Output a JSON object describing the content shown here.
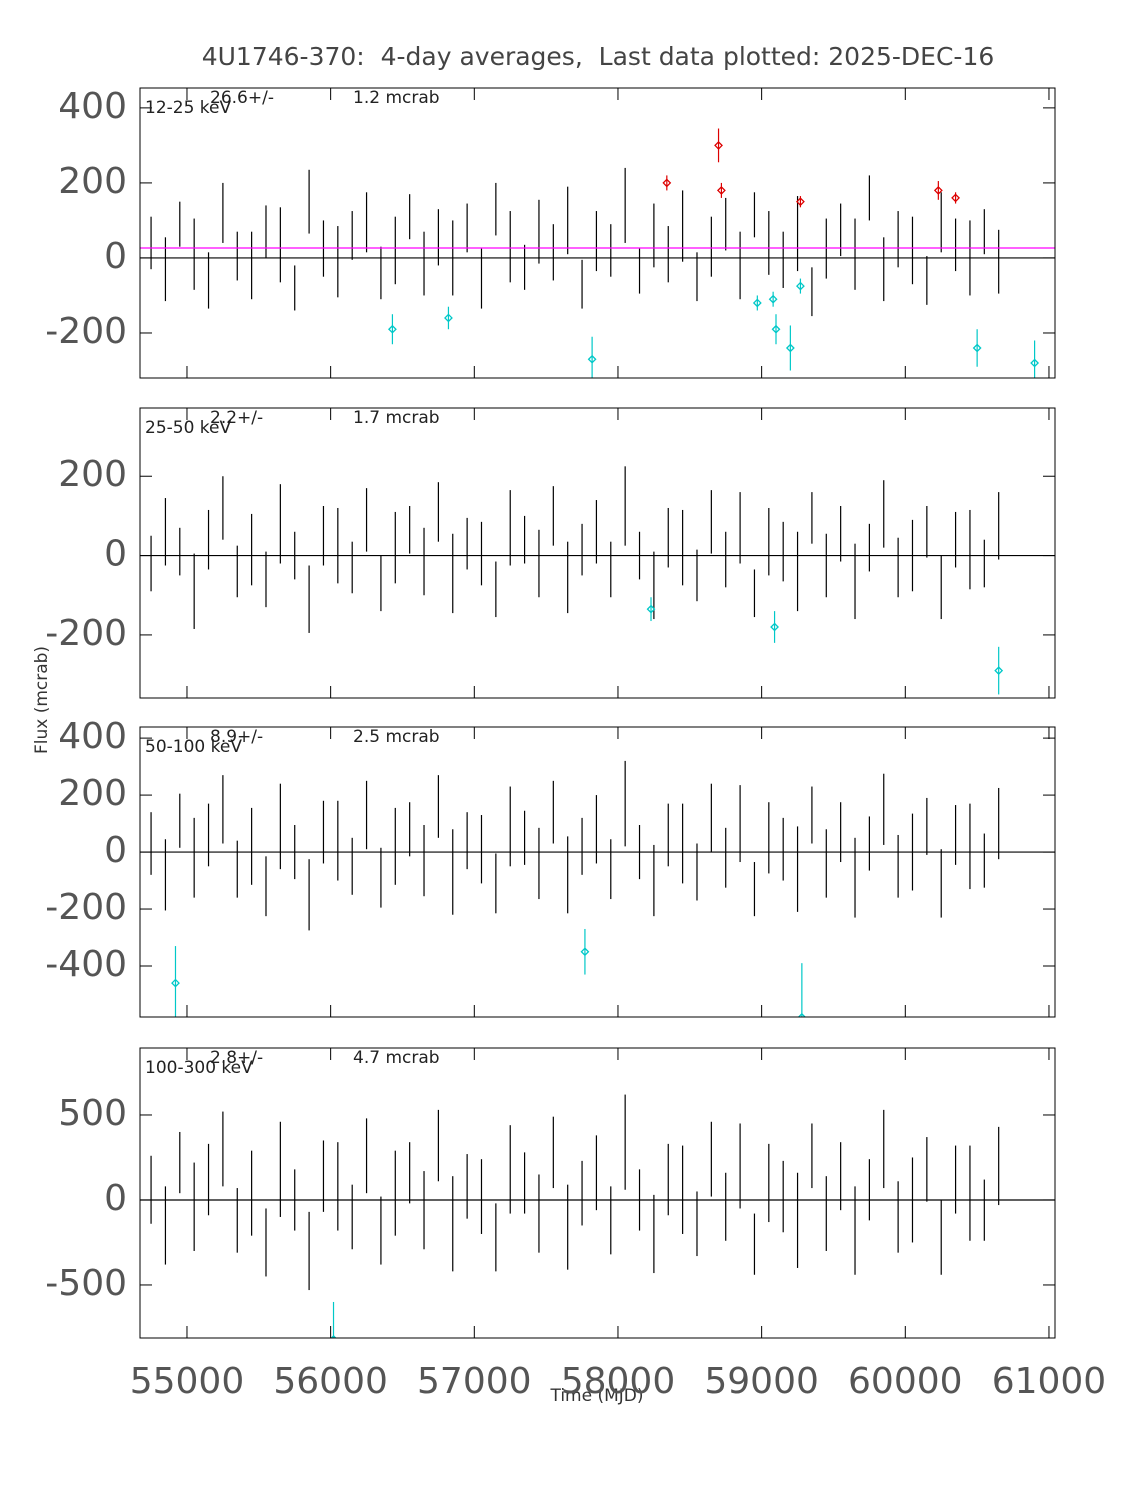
{
  "chart_data": [
    {
      "type": "errorbar",
      "title": "4U1746-370:  4-day averages,  Last data plotted: 2025-DEC-16",
      "ylabel": "Flux (mcrab)",
      "band": "12-25 keV",
      "mean": {
        "value": 26.6,
        "label": "26.6+/-"
      },
      "mean_error": "1.2 mcrab",
      "mean_line_color": "#ff00ff",
      "xlim": [
        54673,
        61042
      ],
      "ylim": [
        -320,
        453
      ],
      "yticks": [
        -200,
        0,
        200,
        400
      ],
      "series": [
        {
          "color": "#000000",
          "marker": "none",
          "x": [
            54750,
            54850,
            54950,
            55050,
            55150,
            55250,
            55350,
            55450,
            55550,
            55650,
            55750,
            55850,
            55950,
            56050,
            56150,
            56250,
            56350,
            56450,
            56550,
            56650,
            56750,
            56850,
            56950,
            57050,
            57150,
            57250,
            57350,
            57450,
            57550,
            57650,
            57750,
            57850,
            57950,
            58050,
            58150,
            58250,
            58350,
            58450,
            58550,
            58650,
            58750,
            58850,
            58950,
            59050,
            59150,
            59250,
            59350,
            59450,
            59550,
            59650,
            59750,
            59850,
            59950,
            60050,
            60150,
            60250,
            60350,
            60450,
            60550,
            60650
          ],
          "values": [
            40,
            -30,
            90,
            10,
            -60,
            120,
            5,
            -20,
            70,
            35,
            -80,
            150,
            25,
            -10,
            60,
            95,
            -40,
            20,
            110,
            -15,
            55,
            0,
            80,
            -55,
            130,
            30,
            -25,
            70,
            15,
            100,
            -70,
            45,
            20,
            140,
            -35,
            60,
            10,
            85,
            -50,
            30,
            90,
            -20,
            115,
            40,
            -5,
            65,
            -90,
            25,
            75,
            10,
            160,
            -30,
            50,
            20,
            -60,
            95,
            35,
            0,
            70,
            -10
          ],
          "errors": [
            70,
            85,
            60,
            95,
            75,
            80,
            65,
            90,
            70,
            100,
            60,
            85,
            75,
            95,
            65,
            80,
            70,
            90,
            60,
            85,
            75,
            100,
            65,
            80,
            70,
            95,
            60,
            85,
            75,
            90,
            65,
            80,
            70,
            100,
            60,
            85,
            75,
            95,
            65,
            80,
            70,
            90,
            60,
            85,
            75,
            100,
            65,
            80,
            70,
            95,
            60,
            85,
            75,
            90,
            65,
            80,
            70,
            100,
            60,
            85
          ]
        },
        {
          "color": "#dd0000",
          "marker": "diamond",
          "x": [
            58340,
            58700,
            58720,
            59270,
            60230,
            60350
          ],
          "values": [
            200,
            300,
            180,
            150,
            180,
            160
          ],
          "errors": [
            20,
            45,
            20,
            15,
            25,
            15
          ]
        },
        {
          "color": "#00c8c8",
          "marker": "diamond",
          "x": [
            56430,
            56820,
            57820,
            58970,
            59080,
            59100,
            59200,
            59270,
            60500,
            60900
          ],
          "values": [
            -190,
            -160,
            -270,
            -120,
            -110,
            -190,
            -240,
            -75,
            -240,
            -280
          ],
          "errors": [
            40,
            30,
            60,
            20,
            20,
            40,
            60,
            20,
            50,
            60
          ]
        }
      ]
    },
    {
      "type": "errorbar",
      "band": "25-50 keV",
      "mean": {
        "value": 2.2,
        "label": "2.2+/-"
      },
      "mean_error": "1.7 mcrab",
      "xlim": [
        54673,
        61042
      ],
      "ylim": [
        -359,
        372
      ],
      "yticks": [
        -200,
        0,
        200
      ],
      "series": [
        {
          "color": "#000000",
          "marker": "none",
          "x": [
            54750,
            54850,
            54950,
            55050,
            55150,
            55250,
            55350,
            55450,
            55550,
            55650,
            55750,
            55850,
            55950,
            56050,
            56150,
            56250,
            56350,
            56450,
            56550,
            56650,
            56750,
            56850,
            56950,
            57050,
            57150,
            57250,
            57350,
            57450,
            57550,
            57650,
            57750,
            57850,
            57950,
            58050,
            58150,
            58250,
            58350,
            58450,
            58550,
            58650,
            58750,
            58850,
            58950,
            59050,
            59150,
            59250,
            59350,
            59450,
            59550,
            59650,
            59750,
            59850,
            59950,
            60050,
            60150,
            60250,
            60350,
            60450,
            60550,
            60650
          ],
          "values": [
            -20,
            60,
            10,
            -90,
            40,
            120,
            -40,
            15,
            -60,
            80,
            0,
            -110,
            50,
            25,
            -30,
            90,
            -70,
            20,
            65,
            -15,
            110,
            -45,
            30,
            5,
            -85,
            70,
            40,
            -20,
            100,
            -55,
            15,
            60,
            -35,
            125,
            0,
            -75,
            45,
            20,
            -50,
            85,
            -10,
            70,
            -95,
            35,
            10,
            -40,
            95,
            -25,
            55,
            -65,
            20,
            105,
            -30,
            0,
            60,
            -80,
            40,
            15,
            -20,
            75
          ],
          "errors": [
            70,
            85,
            60,
            95,
            75,
            80,
            65,
            90,
            70,
            100,
            60,
            85,
            75,
            95,
            65,
            80,
            70,
            90,
            60,
            85,
            75,
            100,
            65,
            80,
            70,
            95,
            60,
            85,
            75,
            90,
            65,
            80,
            70,
            100,
            60,
            85,
            75,
            95,
            65,
            80,
            70,
            90,
            60,
            85,
            75,
            100,
            65,
            80,
            70,
            95,
            60,
            85,
            75,
            90,
            65,
            80,
            70,
            100,
            60,
            85
          ]
        },
        {
          "color": "#00c8c8",
          "marker": "diamond",
          "x": [
            58230,
            59090,
            60650
          ],
          "values": [
            -135,
            -180,
            -290
          ],
          "errors": [
            30,
            40,
            60
          ]
        }
      ]
    },
    {
      "type": "errorbar",
      "band": "50-100 keV",
      "mean": {
        "value": 8.9,
        "label": "8.9+/-"
      },
      "mean_error": "2.5 mcrab",
      "xlim": [
        54673,
        61042
      ],
      "ylim": [
        -579,
        439
      ],
      "yticks": [
        -400,
        -200,
        0,
        200,
        400
      ],
      "series": [
        {
          "color": "#000000",
          "marker": "none",
          "x": [
            54750,
            54850,
            54950,
            55050,
            55150,
            55250,
            55350,
            55450,
            55550,
            55650,
            55750,
            55850,
            55950,
            56050,
            56150,
            56250,
            56350,
            56450,
            56550,
            56650,
            56750,
            56850,
            56950,
            57050,
            57150,
            57250,
            57350,
            57450,
            57550,
            57650,
            57750,
            57850,
            57950,
            58050,
            58150,
            58250,
            58350,
            58450,
            58550,
            58650,
            58750,
            58850,
            58950,
            59050,
            59150,
            59250,
            59350,
            59450,
            59550,
            59650,
            59750,
            59850,
            59950,
            60050,
            60150,
            60250,
            60350,
            60450,
            60550,
            60650
          ],
          "values": [
            30,
            -80,
            110,
            -20,
            60,
            150,
            -60,
            20,
            -120,
            90,
            0,
            -150,
            70,
            40,
            -50,
            130,
            -90,
            20,
            80,
            -30,
            160,
            -70,
            40,
            10,
            -110,
            90,
            50,
            -40,
            140,
            -80,
            20,
            80,
            -60,
            170,
            0,
            -100,
            60,
            30,
            -70,
            120,
            -20,
            100,
            -130,
            50,
            10,
            -60,
            130,
            -40,
            70,
            -90,
            30,
            150,
            -50,
            0,
            90,
            -110,
            60,
            20,
            -30,
            100
          ],
          "errors": [
            110,
            125,
            95,
            140,
            110,
            120,
            100,
            135,
            105,
            150,
            95,
            125,
            110,
            140,
            100,
            120,
            105,
            135,
            95,
            125,
            110,
            150,
            100,
            120,
            105,
            140,
            95,
            125,
            110,
            135,
            100,
            120,
            105,
            150,
            95,
            125,
            110,
            140,
            100,
            120,
            105,
            135,
            95,
            125,
            110,
            150,
            100,
            120,
            105,
            140,
            95,
            125,
            110,
            135,
            100,
            120,
            105,
            150,
            95,
            125
          ]
        },
        {
          "color": "#00c8c8",
          "marker": "diamond",
          "x": [
            54920,
            57770,
            59280
          ],
          "values": [
            -460,
            -350,
            -580
          ],
          "errors": [
            130,
            80,
            190
          ]
        }
      ]
    },
    {
      "type": "errorbar",
      "band": "100-300 keV",
      "mean": {
        "value": 2.8,
        "label": "2.8+/-"
      },
      "mean_error": "4.7 mcrab",
      "xlabel": "Time (MJD)",
      "xlim": [
        54673,
        61042
      ],
      "xticks": [
        55000,
        56000,
        57000,
        58000,
        59000,
        60000,
        61000
      ],
      "ylim": [
        -812,
        894
      ],
      "yticks": [
        -500,
        0,
        500
      ],
      "series": [
        {
          "color": "#000000",
          "marker": "none",
          "x": [
            54750,
            54850,
            54950,
            55050,
            55150,
            55250,
            55350,
            55450,
            55550,
            55650,
            55750,
            55850,
            55950,
            56050,
            56150,
            56250,
            56350,
            56450,
            56550,
            56650,
            56750,
            56850,
            56950,
            57050,
            57150,
            57250,
            57350,
            57450,
            57550,
            57650,
            57750,
            57850,
            57950,
            58050,
            58150,
            58250,
            58350,
            58450,
            58550,
            58650,
            58750,
            58850,
            58950,
            59050,
            59150,
            59250,
            59350,
            59450,
            59550,
            59650,
            59750,
            59850,
            59950,
            60050,
            60150,
            60250,
            60350,
            60450,
            60550,
            60650
          ],
          "values": [
            60,
            -150,
            220,
            -40,
            120,
            300,
            -120,
            40,
            -250,
            180,
            0,
            -300,
            140,
            80,
            -100,
            260,
            -180,
            40,
            160,
            -60,
            320,
            -140,
            80,
            20,
            -220,
            180,
            100,
            -80,
            280,
            -160,
            40,
            160,
            -120,
            340,
            0,
            -200,
            120,
            60,
            -140,
            240,
            -40,
            200,
            -260,
            100,
            20,
            -120,
            260,
            -80,
            140,
            -180,
            60,
            300,
            -100,
            0,
            180,
            -220,
            120,
            40,
            -60,
            200
          ],
          "errors": [
            200,
            230,
            180,
            260,
            210,
            220,
            190,
            250,
            200,
            280,
            180,
            230,
            210,
            260,
            190,
            220,
            200,
            250,
            180,
            230,
            210,
            280,
            190,
            220,
            200,
            260,
            180,
            230,
            210,
            250,
            190,
            220,
            200,
            280,
            180,
            230,
            210,
            260,
            190,
            220,
            200,
            250,
            180,
            230,
            210,
            280,
            190,
            220,
            200,
            260,
            180,
            230,
            210,
            250,
            190,
            220,
            200,
            280,
            180,
            230
          ]
        },
        {
          "color": "#00c8c8",
          "marker": "diamond",
          "x": [
            56020
          ],
          "values": [
            -820
          ],
          "errors": [
            220
          ]
        }
      ]
    }
  ]
}
